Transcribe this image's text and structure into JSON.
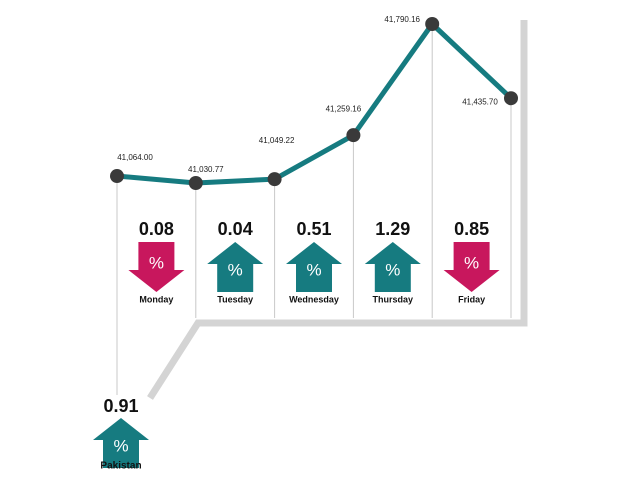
{
  "chart_data": {
    "type": "line",
    "categories": [
      null,
      null,
      null,
      null,
      null,
      null
    ],
    "values": [
      41064.0,
      41030.77,
      41049.22,
      41259.16,
      41790.16,
      41435.7
    ],
    "value_labels": [
      "41,064.00",
      "41,030.77",
      "41,049.22",
      "41,259.16",
      "41,790.16",
      "41,435.70"
    ],
    "color": "#167b80",
    "percent_symbol": "%",
    "up_color": "#167b80",
    "down_color": "#c8175d",
    "changes": [
      {
        "day": "Monday",
        "value": 0.08,
        "direction": "down"
      },
      {
        "day": "Tuesday",
        "value": 0.04,
        "direction": "up"
      },
      {
        "day": "Wednesday",
        "value": 0.51,
        "direction": "up"
      },
      {
        "day": "Thursday",
        "value": 1.29,
        "direction": "up"
      },
      {
        "day": "Friday",
        "value": 0.85,
        "direction": "down"
      }
    ],
    "overall": {
      "label": "Pakistan",
      "value": 0.91,
      "direction": "up"
    }
  }
}
